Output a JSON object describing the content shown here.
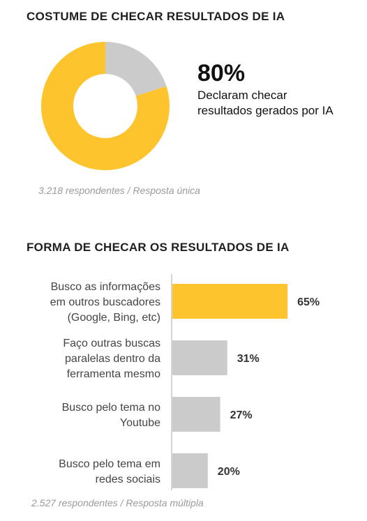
{
  "section1": {
    "title": "COSTUME DE CHECAR RESULTADOS DE IA",
    "big_value": "80%",
    "description": "Declaram checar resultados gerados por IA",
    "note": "3.218 respondentes / Resposta única"
  },
  "section2": {
    "title": "FORMA DE CHECAR OS RESULTADOS DE IA",
    "note": "2.527 respondentes / Resposta múltipla"
  },
  "colors": {
    "highlight": "#FDC42D",
    "neutral": "#CBCBCB"
  },
  "chart_data": [
    {
      "type": "pie",
      "style": "donut",
      "title": "COSTUME DE CHECAR RESULTADOS DE IA",
      "slices": [
        {
          "label": "Declaram checar resultados gerados por IA",
          "value": 80,
          "color": "#FDC42D"
        },
        {
          "label": "",
          "value": 20,
          "color": "#CBCBCB"
        }
      ]
    },
    {
      "type": "bar",
      "orientation": "horizontal",
      "title": "FORMA DE CHECAR OS RESULTADOS DE IA",
      "categories": [
        "Busco as informações em outros buscadores (Google, Bing, etc)",
        "Faço outras buscas paralelas dentro da ferramenta mesmo",
        "Busco pelo tema no Youtube",
        "Busco pelo tema em redes sociais"
      ],
      "category_lines": [
        [
          "Busco as informações",
          "em outros buscadores",
          "(Google, Bing, etc)"
        ],
        [
          "Faço outras buscas",
          "paralelas dentro da",
          "ferramenta mesmo"
        ],
        [
          "Busco pelo tema no",
          "Youtube"
        ],
        [
          "Busco pelo tema em",
          "redes sociais"
        ]
      ],
      "values": [
        65,
        31,
        27,
        20
      ],
      "value_labels": [
        "65%",
        "31%",
        "27%",
        "20%"
      ],
      "colors": [
        "#FDC42D",
        "#CBCBCB",
        "#CBCBCB",
        "#CBCBCB"
      ],
      "xlim": [
        0,
        100
      ],
      "grid": false
    }
  ]
}
